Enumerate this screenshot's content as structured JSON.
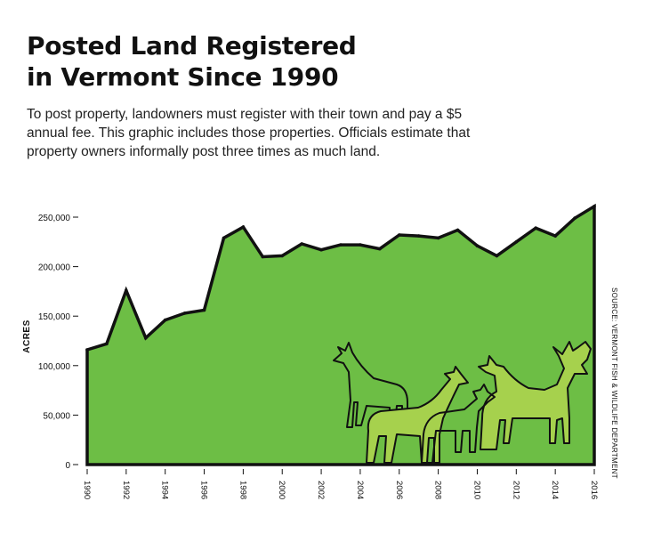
{
  "title_line1": "Posted Land Registered",
  "title_line2": "in Vermont Since 1990",
  "subtitle": "To post property, landowners must register with their town and pay a $5 annual fee. This graphic includes those properties. Officials estimate that property owners informally post three times as much land.",
  "source": "SOURCE: VERMONT FISH & WILDLIFE DEPARTMENT",
  "colors": {
    "area_fill": "#6dbe45",
    "outline": "#111111",
    "deer_fill": "#a6d14d"
  },
  "chart_data": {
    "type": "area",
    "ylabel": "ACRES",
    "xlabel": "",
    "ylim": [
      0,
      250000
    ],
    "xlim": [
      1990,
      2016
    ],
    "y_ticks": [
      "0",
      "50,000",
      "100,000",
      "150,000",
      "200,000",
      "250,000"
    ],
    "y_tick_values": [
      0,
      50000,
      100000,
      150000,
      200000,
      250000
    ],
    "x_ticks": [
      "1990",
      "1992",
      "1994",
      "1996",
      "1998",
      "2000",
      "2002",
      "2004",
      "2006",
      "2008",
      "2010",
      "2012",
      "2014",
      "2016"
    ],
    "x_tick_values": [
      1990,
      1992,
      1994,
      1996,
      1998,
      2000,
      2002,
      2004,
      2006,
      2008,
      2010,
      2012,
      2014,
      2016
    ],
    "x": [
      1990,
      1991,
      1992,
      1993,
      1994,
      1995,
      1996,
      1997,
      1998,
      1999,
      2000,
      2001,
      2002,
      2003,
      2004,
      2005,
      2006,
      2007,
      2008,
      2009,
      2010,
      2011,
      2012,
      2013,
      2014,
      2015,
      2016
    ],
    "values": [
      116000,
      122000,
      176000,
      128000,
      146000,
      153000,
      156000,
      229000,
      240000,
      210000,
      211000,
      223000,
      217000,
      222000,
      222000,
      218000,
      232000,
      231000,
      229000,
      237000,
      221000,
      211000,
      225000,
      239000,
      231000,
      249000,
      261000
    ],
    "grid": false,
    "legend": "none"
  }
}
